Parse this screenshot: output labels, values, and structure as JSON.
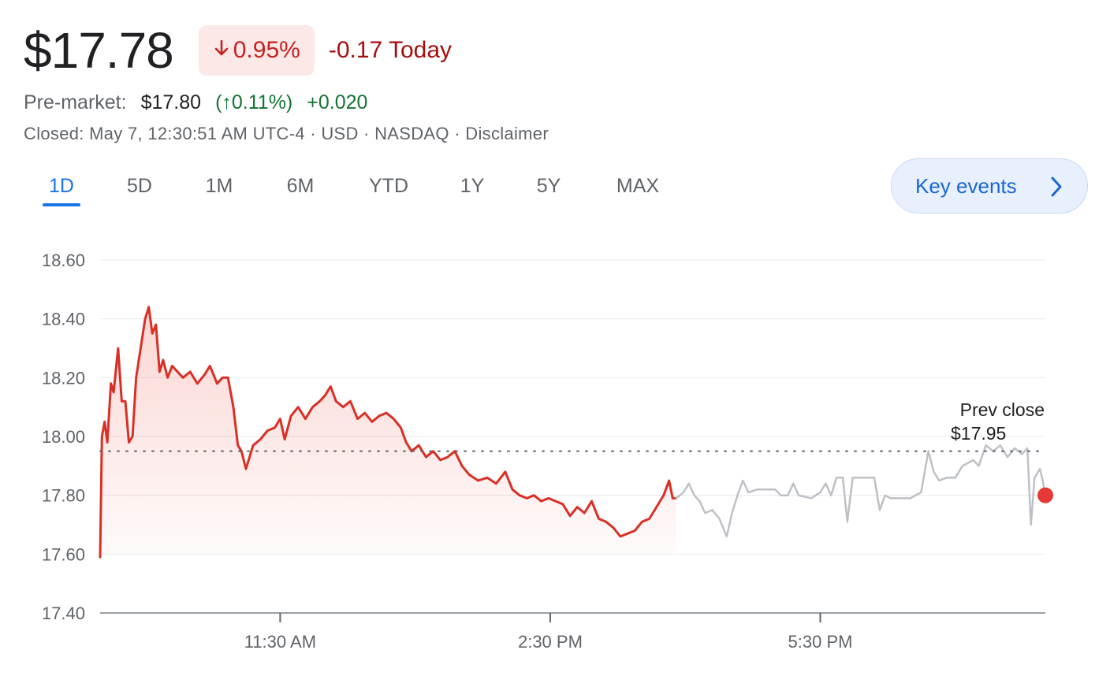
{
  "quote": {
    "price": "$17.78",
    "change_pct": "0.95%",
    "change_today": "-0.17 Today",
    "premarket_label": "Pre-market:",
    "premarket_price": "$17.80",
    "premarket_pct": "(↑0.11%)",
    "premarket_change": "+0.020",
    "closed_line": "Closed: May 7, 12:30:51 AM UTC-4 · USD · NASDAQ · Disclaimer",
    "colors": {
      "down": "#c5221f",
      "down_dark": "#a50e0e",
      "up": "#137333",
      "accent": "#1a73e8"
    }
  },
  "tabs": [
    {
      "label": "1D",
      "active": true
    },
    {
      "label": "5D",
      "active": false
    },
    {
      "label": "1M",
      "active": false
    },
    {
      "label": "6M",
      "active": false
    },
    {
      "label": "YTD",
      "active": false
    },
    {
      "label": "1Y",
      "active": false
    },
    {
      "label": "5Y",
      "active": false
    },
    {
      "label": "MAX",
      "active": false
    }
  ],
  "key_events": {
    "label": "Key events"
  },
  "chart_data": {
    "type": "line",
    "ylim": [
      17.4,
      18.6
    ],
    "y_ticks": [
      "18.60",
      "18.40",
      "18.20",
      "18.00",
      "17.80",
      "17.60",
      "17.40"
    ],
    "x_range_hours": [
      9.5,
      20
    ],
    "x_ticks": [
      {
        "label": "11:30 AM",
        "hour": 11.5
      },
      {
        "label": "2:30 PM",
        "hour": 14.5
      },
      {
        "label": "5:30 PM",
        "hour": 17.5
      }
    ],
    "grid": true,
    "prev_close": {
      "value": 17.95,
      "label": "Prev close",
      "value_label": "$17.95"
    },
    "last_point": {
      "hour": 20,
      "value": 17.8
    },
    "series": [
      {
        "session": "regular",
        "color": "#d93025",
        "points": [
          [
            9.5,
            17.59
          ],
          [
            9.52,
            18.0
          ],
          [
            9.55,
            18.05
          ],
          [
            9.58,
            17.98
          ],
          [
            9.62,
            18.18
          ],
          [
            9.65,
            18.15
          ],
          [
            9.7,
            18.3
          ],
          [
            9.74,
            18.12
          ],
          [
            9.78,
            18.12
          ],
          [
            9.82,
            17.98
          ],
          [
            9.86,
            18.0
          ],
          [
            9.9,
            18.2
          ],
          [
            9.95,
            18.3
          ],
          [
            10.0,
            18.4
          ],
          [
            10.04,
            18.44
          ],
          [
            10.08,
            18.35
          ],
          [
            10.12,
            18.38
          ],
          [
            10.16,
            18.22
          ],
          [
            10.2,
            18.26
          ],
          [
            10.25,
            18.2
          ],
          [
            10.3,
            18.24
          ],
          [
            10.36,
            18.22
          ],
          [
            10.42,
            18.2
          ],
          [
            10.5,
            18.22
          ],
          [
            10.58,
            18.18
          ],
          [
            10.66,
            18.21
          ],
          [
            10.72,
            18.24
          ],
          [
            10.8,
            18.18
          ],
          [
            10.86,
            18.2
          ],
          [
            10.92,
            18.2
          ],
          [
            10.98,
            18.1
          ],
          [
            11.03,
            17.97
          ],
          [
            11.07,
            17.95
          ],
          [
            11.12,
            17.89
          ],
          [
            11.2,
            17.97
          ],
          [
            11.28,
            17.99
          ],
          [
            11.36,
            18.02
          ],
          [
            11.44,
            18.03
          ],
          [
            11.5,
            18.06
          ],
          [
            11.55,
            17.99
          ],
          [
            11.62,
            18.07
          ],
          [
            11.7,
            18.1
          ],
          [
            11.78,
            18.06
          ],
          [
            11.86,
            18.1
          ],
          [
            11.94,
            18.12
          ],
          [
            12.0,
            18.14
          ],
          [
            12.06,
            18.17
          ],
          [
            12.12,
            18.12
          ],
          [
            12.2,
            18.1
          ],
          [
            12.28,
            18.12
          ],
          [
            12.36,
            18.06
          ],
          [
            12.44,
            18.08
          ],
          [
            12.52,
            18.05
          ],
          [
            12.6,
            18.07
          ],
          [
            12.68,
            18.08
          ],
          [
            12.76,
            18.06
          ],
          [
            12.84,
            18.03
          ],
          [
            12.9,
            17.98
          ],
          [
            12.96,
            17.95
          ],
          [
            13.04,
            17.97
          ],
          [
            13.12,
            17.93
          ],
          [
            13.2,
            17.95
          ],
          [
            13.28,
            17.92
          ],
          [
            13.36,
            17.93
          ],
          [
            13.44,
            17.95
          ],
          [
            13.52,
            17.9
          ],
          [
            13.6,
            17.87
          ],
          [
            13.7,
            17.85
          ],
          [
            13.8,
            17.86
          ],
          [
            13.9,
            17.84
          ],
          [
            14.0,
            17.88
          ],
          [
            14.08,
            17.82
          ],
          [
            14.16,
            17.8
          ],
          [
            14.24,
            17.79
          ],
          [
            14.32,
            17.8
          ],
          [
            14.4,
            17.78
          ],
          [
            14.48,
            17.79
          ],
          [
            14.56,
            17.78
          ],
          [
            14.64,
            17.77
          ],
          [
            14.72,
            17.73
          ],
          [
            14.8,
            17.76
          ],
          [
            14.88,
            17.74
          ],
          [
            14.96,
            17.78
          ],
          [
            15.04,
            17.72
          ],
          [
            15.12,
            17.71
          ],
          [
            15.2,
            17.69
          ],
          [
            15.28,
            17.66
          ],
          [
            15.36,
            17.67
          ],
          [
            15.44,
            17.68
          ],
          [
            15.52,
            17.71
          ],
          [
            15.6,
            17.72
          ],
          [
            15.68,
            17.76
          ],
          [
            15.76,
            17.8
          ],
          [
            15.82,
            17.85
          ],
          [
            15.86,
            17.79
          ],
          [
            15.9,
            17.79
          ]
        ]
      },
      {
        "session": "after-hours",
        "color": "#bdc1c6",
        "points": [
          [
            15.9,
            17.79
          ],
          [
            15.98,
            17.81
          ],
          [
            16.04,
            17.84
          ],
          [
            16.1,
            17.8
          ],
          [
            16.16,
            17.78
          ],
          [
            16.22,
            17.74
          ],
          [
            16.3,
            17.75
          ],
          [
            16.38,
            17.72
          ],
          [
            16.46,
            17.66
          ],
          [
            16.52,
            17.74
          ],
          [
            16.58,
            17.8
          ],
          [
            16.64,
            17.85
          ],
          [
            16.7,
            17.81
          ],
          [
            16.8,
            17.82
          ],
          [
            16.9,
            17.82
          ],
          [
            17.0,
            17.82
          ],
          [
            17.06,
            17.8
          ],
          [
            17.14,
            17.8
          ],
          [
            17.2,
            17.84
          ],
          [
            17.26,
            17.8
          ],
          [
            17.4,
            17.79
          ],
          [
            17.5,
            17.81
          ],
          [
            17.56,
            17.84
          ],
          [
            17.62,
            17.8
          ],
          [
            17.68,
            17.86
          ],
          [
            17.75,
            17.86
          ],
          [
            17.8,
            17.71
          ],
          [
            17.86,
            17.86
          ],
          [
            18.1,
            17.86
          ],
          [
            18.16,
            17.75
          ],
          [
            18.22,
            17.8
          ],
          [
            18.28,
            17.79
          ],
          [
            18.5,
            17.79
          ],
          [
            18.62,
            17.81
          ],
          [
            18.7,
            17.95
          ],
          [
            18.76,
            17.88
          ],
          [
            18.82,
            17.85
          ],
          [
            18.9,
            17.86
          ],
          [
            19.0,
            17.86
          ],
          [
            19.08,
            17.9
          ],
          [
            19.14,
            17.91
          ],
          [
            19.2,
            17.92
          ],
          [
            19.26,
            17.9
          ],
          [
            19.34,
            17.97
          ],
          [
            19.42,
            17.95
          ],
          [
            19.5,
            17.97
          ],
          [
            19.58,
            17.93
          ],
          [
            19.66,
            17.96
          ],
          [
            19.74,
            17.94
          ],
          [
            19.8,
            17.96
          ],
          [
            19.84,
            17.7
          ],
          [
            19.88,
            17.86
          ],
          [
            19.94,
            17.89
          ],
          [
            19.97,
            17.85
          ],
          [
            20.0,
            17.8
          ]
        ]
      }
    ]
  }
}
